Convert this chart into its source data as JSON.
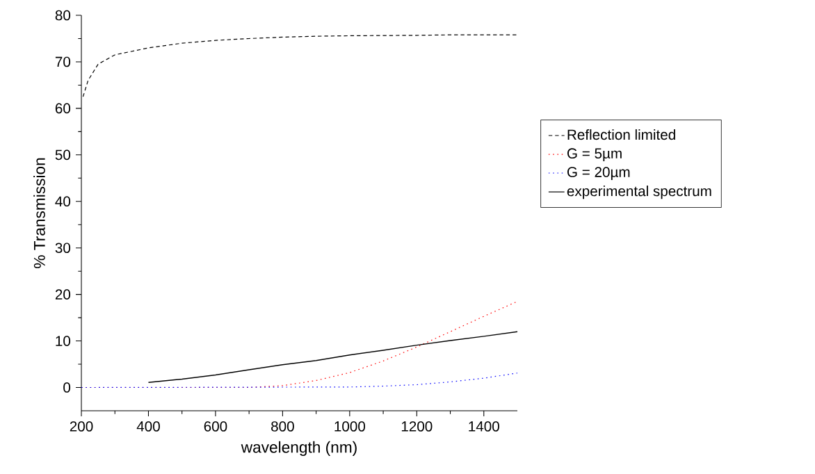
{
  "chart_data": {
    "type": "line",
    "xlabel": "wavelength (nm)",
    "ylabel": "% Transmission",
    "xlim": [
      200,
      1500
    ],
    "ylim": [
      -5,
      80
    ],
    "xticks": [
      200,
      400,
      600,
      800,
      1000,
      1200,
      1400
    ],
    "yticks": [
      0,
      10,
      20,
      30,
      40,
      50,
      60,
      70,
      80
    ],
    "legend": "right",
    "marker": "none",
    "series": [
      {
        "name": "Reflection limited",
        "color": "#000000",
        "line_style": "dashed",
        "x": [
          205,
          220,
          250,
          300,
          400,
          500,
          600,
          700,
          800,
          900,
          1000,
          1200,
          1300,
          1500
        ],
        "values": [
          62.5,
          66,
          69.5,
          71.5,
          73,
          74,
          74.6,
          75,
          75.3,
          75.5,
          75.6,
          75.7,
          75.8,
          75.8
        ]
      },
      {
        "name": "G = 5µm",
        "color": "#ff0000",
        "line_style": "dotted",
        "x": [
          200,
          700,
          800,
          900,
          1000,
          1100,
          1200,
          1300,
          1400,
          1500
        ],
        "values": [
          0,
          0,
          0.4,
          1.5,
          3.2,
          5.7,
          8.7,
          12,
          15.3,
          18.5
        ]
      },
      {
        "name": "G = 20µm",
        "color": "#0000ff",
        "line_style": "dotted",
        "x": [
          200,
          1000,
          1100,
          1200,
          1300,
          1400,
          1500
        ],
        "values": [
          0,
          0.1,
          0.3,
          0.6,
          1.2,
          2,
          3.1
        ]
      },
      {
        "name": "experimental spectrum",
        "color": "#000000",
        "line_style": "solid",
        "x": [
          400,
          500,
          600,
          700,
          800,
          900,
          1000,
          1100,
          1200,
          1300,
          1400,
          1500
        ],
        "values": [
          1.1,
          1.8,
          2.7,
          3.8,
          4.9,
          5.8,
          7.0,
          8.0,
          9.1,
          10.1,
          11.0,
          12.0
        ]
      }
    ]
  }
}
